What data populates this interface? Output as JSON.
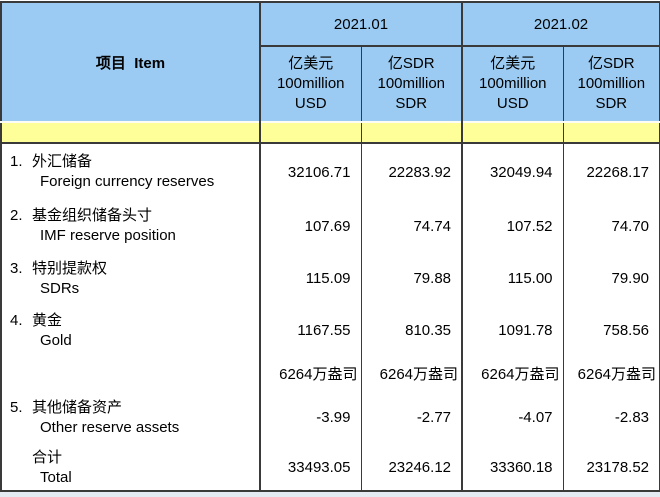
{
  "table": {
    "item_header": "项目  Item",
    "periods": [
      "2021.01",
      "2021.02"
    ],
    "sub_headers": [
      {
        "lines": [
          "亿美元",
          "100million",
          "USD"
        ]
      },
      {
        "lines": [
          "亿SDR",
          "100million",
          "SDR"
        ]
      },
      {
        "lines": [
          "亿美元",
          "100million",
          "USD"
        ]
      },
      {
        "lines": [
          "亿SDR",
          "100million",
          "SDR"
        ]
      }
    ],
    "rows": [
      {
        "num": "1.",
        "cn": "外汇储备",
        "en": "Foreign currency reserves",
        "values": [
          "32106.71",
          "22283.92",
          "32049.94",
          "22268.17"
        ]
      },
      {
        "num": "2.",
        "cn": "基金组织储备头寸",
        "en": "IMF reserve position",
        "values": [
          "107.69",
          "74.74",
          "107.52",
          "74.70"
        ]
      },
      {
        "num": "3.",
        "cn": "特别提款权",
        "en": "SDRs",
        "values": [
          "115.09",
          "79.88",
          "115.00",
          "79.90"
        ]
      },
      {
        "num": "4.",
        "cn": "黄金",
        "en": "Gold",
        "values": [
          "1167.55",
          "810.35",
          "1091.78",
          "758.56"
        ]
      },
      {
        "num": "",
        "cn": "",
        "en": "",
        "values": [
          "6264万盎司",
          "6264万盎司",
          "6264万盎司",
          "6264万盎司"
        ]
      },
      {
        "num": "5.",
        "cn": "其他储备资产",
        "en": "Other reserve assets",
        "values": [
          "-3.99",
          "-2.77",
          "-4.07",
          "-2.83"
        ]
      },
      {
        "num": "",
        "cn": "合计",
        "en": "Total",
        "values": [
          "33493.05",
          "23246.12",
          "33360.18",
          "23178.52"
        ]
      }
    ],
    "colors": {
      "header_bg": "#9bcbf2",
      "band_bg": "#ffff99",
      "border": "#3a3a3a",
      "body_bg": "#ffffff",
      "text": "#000000"
    }
  }
}
